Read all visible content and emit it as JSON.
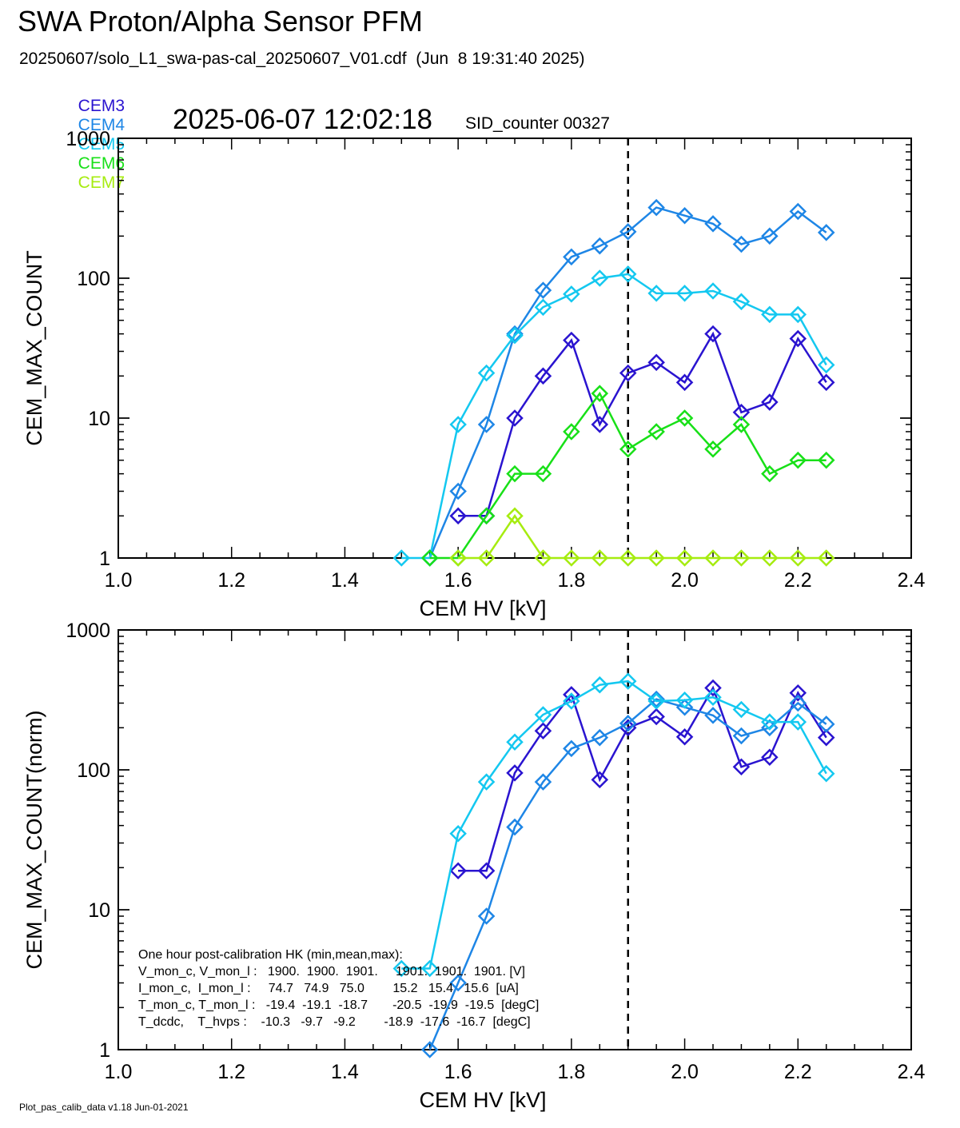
{
  "header": {
    "title": "SWA Proton/Alpha Sensor PFM",
    "file_line": "20250607/solo_L1_swa-pas-cal_20250607_V01.cdf  (Jun  8 19:31:40 2025)",
    "timestamp": "2025-06-07 12:02:18",
    "sid_counter": "SID_counter 00327"
  },
  "legend": [
    {
      "name": "CEM3",
      "color": "#2a14d0"
    },
    {
      "name": "CEM4",
      "color": "#1e86e6"
    },
    {
      "name": "CEM5",
      "color": "#14c8f0"
    },
    {
      "name": "CEM6",
      "color": "#18e018"
    },
    {
      "name": "CEM7",
      "color": "#a6ec10"
    }
  ],
  "hk_box": {
    "title": "One hour post-calibration HK (min,mean,max):",
    "rows": [
      "V_mon_c, V_mon_l :   1900.  1900.  1901.     1901.  1901.  1901. [V]",
      "I_mon_c,  I_mon_l :     74.7   74.9   75.0        15.2   15.4   15.6  [uA]",
      "T_mon_c, T_mon_l :   -19.4  -19.1  -18.7       -20.5  -19.9  -19.5  [degC]",
      "T_dcdc,    T_hvps :    -10.3   -9.7   -9.2        -18.9  -17.6  -16.7  [degC]"
    ]
  },
  "footer": "Plot_pas_calib_data v1.18 Jun-01-2021",
  "chart_data": [
    {
      "type": "line",
      "xlabel": "CEM HV [kV]",
      "ylabel": "CEM_MAX_COUNT",
      "yscale": "log",
      "xlim": [
        1.0,
        2.4
      ],
      "ylim": [
        1,
        1000
      ],
      "xticks": [
        "1.0",
        "1.2",
        "1.4",
        "1.6",
        "1.8",
        "2.0",
        "2.2",
        "2.4"
      ],
      "yticks": [
        "1",
        "10",
        "100",
        "1000"
      ],
      "vline_x": 1.9,
      "marker": "diamond",
      "series": [
        {
          "name": "CEM3",
          "color": "#2a14d0",
          "x": [
            1.6,
            1.65,
            1.7,
            1.75,
            1.8,
            1.85,
            1.9,
            1.95,
            2.0,
            2.05,
            2.1,
            2.15,
            2.2,
            2.25
          ],
          "y": [
            2,
            2,
            10,
            20,
            36,
            9,
            21,
            25,
            18,
            40,
            11,
            13,
            37,
            18
          ]
        },
        {
          "name": "CEM4",
          "color": "#1e86e6",
          "x": [
            1.55,
            1.6,
            1.65,
            1.7,
            1.75,
            1.8,
            1.85,
            1.9,
            1.95,
            2.0,
            2.05,
            2.1,
            2.15,
            2.2,
            2.25
          ],
          "y": [
            1,
            3,
            9,
            40,
            82,
            142,
            170,
            215,
            320,
            280,
            245,
            175,
            200,
            300,
            212
          ]
        },
        {
          "name": "CEM5",
          "color": "#14c8f0",
          "x": [
            1.5,
            1.55,
            1.6,
            1.65,
            1.7,
            1.75,
            1.8,
            1.85,
            1.9,
            1.95,
            2.0,
            2.05,
            2.1,
            2.15,
            2.2,
            2.25
          ],
          "y": [
            1,
            1,
            9,
            21,
            39,
            62,
            77,
            100,
            107,
            78,
            78,
            81,
            68,
            55,
            55,
            24
          ]
        },
        {
          "name": "CEM6",
          "color": "#18e018",
          "x": [
            1.55,
            1.6,
            1.65,
            1.7,
            1.75,
            1.8,
            1.85,
            1.9,
            1.95,
            2.0,
            2.05,
            2.1,
            2.15,
            2.2,
            2.25
          ],
          "y": [
            1,
            1,
            2,
            4,
            4,
            8,
            15,
            6,
            8,
            10,
            6,
            9,
            4,
            5,
            5
          ]
        },
        {
          "name": "CEM7",
          "color": "#a6ec10",
          "x": [
            1.6,
            1.65,
            1.7,
            1.75,
            1.8,
            1.85,
            1.9,
            1.95,
            2.0,
            2.05,
            2.1,
            2.15,
            2.2,
            2.25
          ],
          "y": [
            1,
            1,
            2,
            1,
            1,
            1,
            1,
            1,
            1,
            1,
            1,
            1,
            1,
            1
          ]
        }
      ]
    },
    {
      "type": "line",
      "xlabel": "CEM HV [kV]",
      "ylabel": "CEM_MAX_COUNT(norm)",
      "yscale": "log",
      "xlim": [
        1.0,
        2.4
      ],
      "ylim": [
        1,
        1000
      ],
      "xticks": [
        "1.0",
        "1.2",
        "1.4",
        "1.6",
        "1.8",
        "2.0",
        "2.2",
        "2.4"
      ],
      "yticks": [
        "1",
        "10",
        "100",
        "1000"
      ],
      "vline_x": 1.9,
      "marker": "diamond",
      "series": [
        {
          "name": "CEM3",
          "color": "#2a14d0",
          "x": [
            1.6,
            1.65,
            1.7,
            1.75,
            1.8,
            1.85,
            1.9,
            1.95,
            2.0,
            2.05,
            2.1,
            2.15,
            2.2,
            2.25
          ],
          "y": [
            19,
            19,
            95,
            190,
            345,
            85,
            200,
            240,
            172,
            385,
            105,
            123,
            355,
            170
          ]
        },
        {
          "name": "CEM4",
          "color": "#1e86e6",
          "x": [
            1.55,
            1.6,
            1.65,
            1.7,
            1.75,
            1.8,
            1.85,
            1.9,
            1.95,
            2.0,
            2.05,
            2.1,
            2.15,
            2.2,
            2.25
          ],
          "y": [
            1,
            3,
            9,
            39,
            82,
            142,
            170,
            215,
            320,
            280,
            245,
            175,
            200,
            300,
            212
          ]
        },
        {
          "name": "CEM5",
          "color": "#14c8f0",
          "x": [
            1.5,
            1.55,
            1.6,
            1.65,
            1.7,
            1.75,
            1.8,
            1.85,
            1.9,
            1.95,
            2.0,
            2.05,
            2.1,
            2.15,
            2.2,
            2.25
          ],
          "y": [
            3.8,
            3.8,
            35,
            82,
            158,
            248,
            310,
            405,
            430,
            310,
            315,
            330,
            270,
            220,
            220,
            94
          ]
        }
      ]
    }
  ]
}
